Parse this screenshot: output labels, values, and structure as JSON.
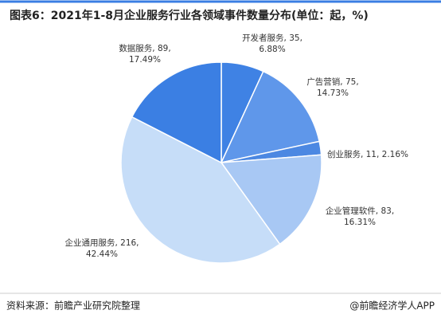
{
  "chart_data": {
    "type": "pie",
    "title": "图表6：2021年1-8月企业服务行业各领域事件数量分布(单位：起，%)",
    "labels": [
      [
        "开发者服务, 35,",
        "6.88%"
      ],
      [
        "广告营销, 75,",
        "14.73%"
      ],
      [
        "创业服务, 11, 2.16%"
      ],
      [
        "企业管理软件, 83,",
        "16.31%"
      ],
      [
        "企业通用服务, 216,",
        "42.44%"
      ],
      [
        "数据服务, 89,",
        "17.49%"
      ]
    ],
    "values": [
      35,
      75,
      11,
      83,
      216,
      89
    ],
    "colors": [
      "#3f82e4",
      "#5f97ea",
      "#4c88e2",
      "#a8c8f4",
      "#c6ddf8",
      "#3b7fe3"
    ]
  },
  "footer": {
    "source": "资料来源：前瞻产业研究院整理",
    "brand": "@前瞻经济学人APP"
  }
}
